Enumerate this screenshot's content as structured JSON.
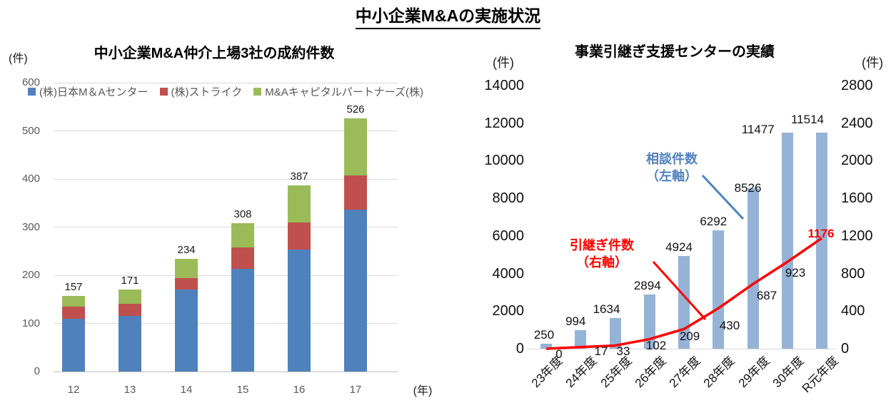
{
  "page_title": "中小企業M&Aの実施状況",
  "chart_data": [
    {
      "type": "bar",
      "stacked": true,
      "title": "中小企業M&A仲介上場3社の成約件数",
      "y_unit": "(件)",
      "x_unit": "(年)",
      "categories": [
        "12",
        "13",
        "14",
        "15",
        "16",
        "17"
      ],
      "series": [
        {
          "name": "(株)日本M＆Aセンター",
          "color": "#4F81BD",
          "values": [
            110,
            115,
            170,
            213,
            254,
            336
          ]
        },
        {
          "name": "(株)ストライク",
          "color": "#C0504D",
          "values": [
            25,
            26,
            24,
            45,
            55,
            71
          ]
        },
        {
          "name": "M&Aキャピタルパートナーズ(株)",
          "color": "#9BBB59",
          "values": [
            22,
            30,
            40,
            50,
            78,
            119
          ]
        }
      ],
      "totals": [
        157,
        171,
        234,
        308,
        387,
        526
      ],
      "ylim": [
        0,
        600
      ],
      "ytick_step": 100,
      "grid": true,
      "legend_position": "top"
    },
    {
      "type": "combo",
      "title": "事業引継ぎ支援センターの実績",
      "categories": [
        "23年度",
        "24年度",
        "25年度",
        "26年度",
        "27年度",
        "28年度",
        "29年度",
        "30年度",
        "R元年度"
      ],
      "left_axis": {
        "unit": "(件)",
        "lim": [
          0,
          14000
        ],
        "step": 2000
      },
      "right_axis": {
        "unit": "(件)",
        "lim": [
          0,
          2800
        ],
        "step": 400
      },
      "bars": {
        "name": "相談件数（左軸）",
        "annotation": "相談件数\n（左軸）",
        "color": "#95B3D7",
        "axis": "left",
        "values": [
          250,
          994,
          1634,
          2894,
          4924,
          6292,
          8526,
          11477,
          11514
        ]
      },
      "line": {
        "name": "引継ぎ件数（右軸）",
        "annotation": "引継ぎ件数\n（右軸）",
        "color": "#FF0000",
        "axis": "right",
        "values": [
          0,
          17,
          33,
          102,
          209,
          430,
          687,
          923,
          1176
        ]
      },
      "grid": false
    }
  ],
  "colors": {
    "annotation_blue": "#4F81BD",
    "annotation_red": "#FF0000",
    "gridline": "#D9D9D9",
    "axis_line": "#BFBFBF"
  }
}
